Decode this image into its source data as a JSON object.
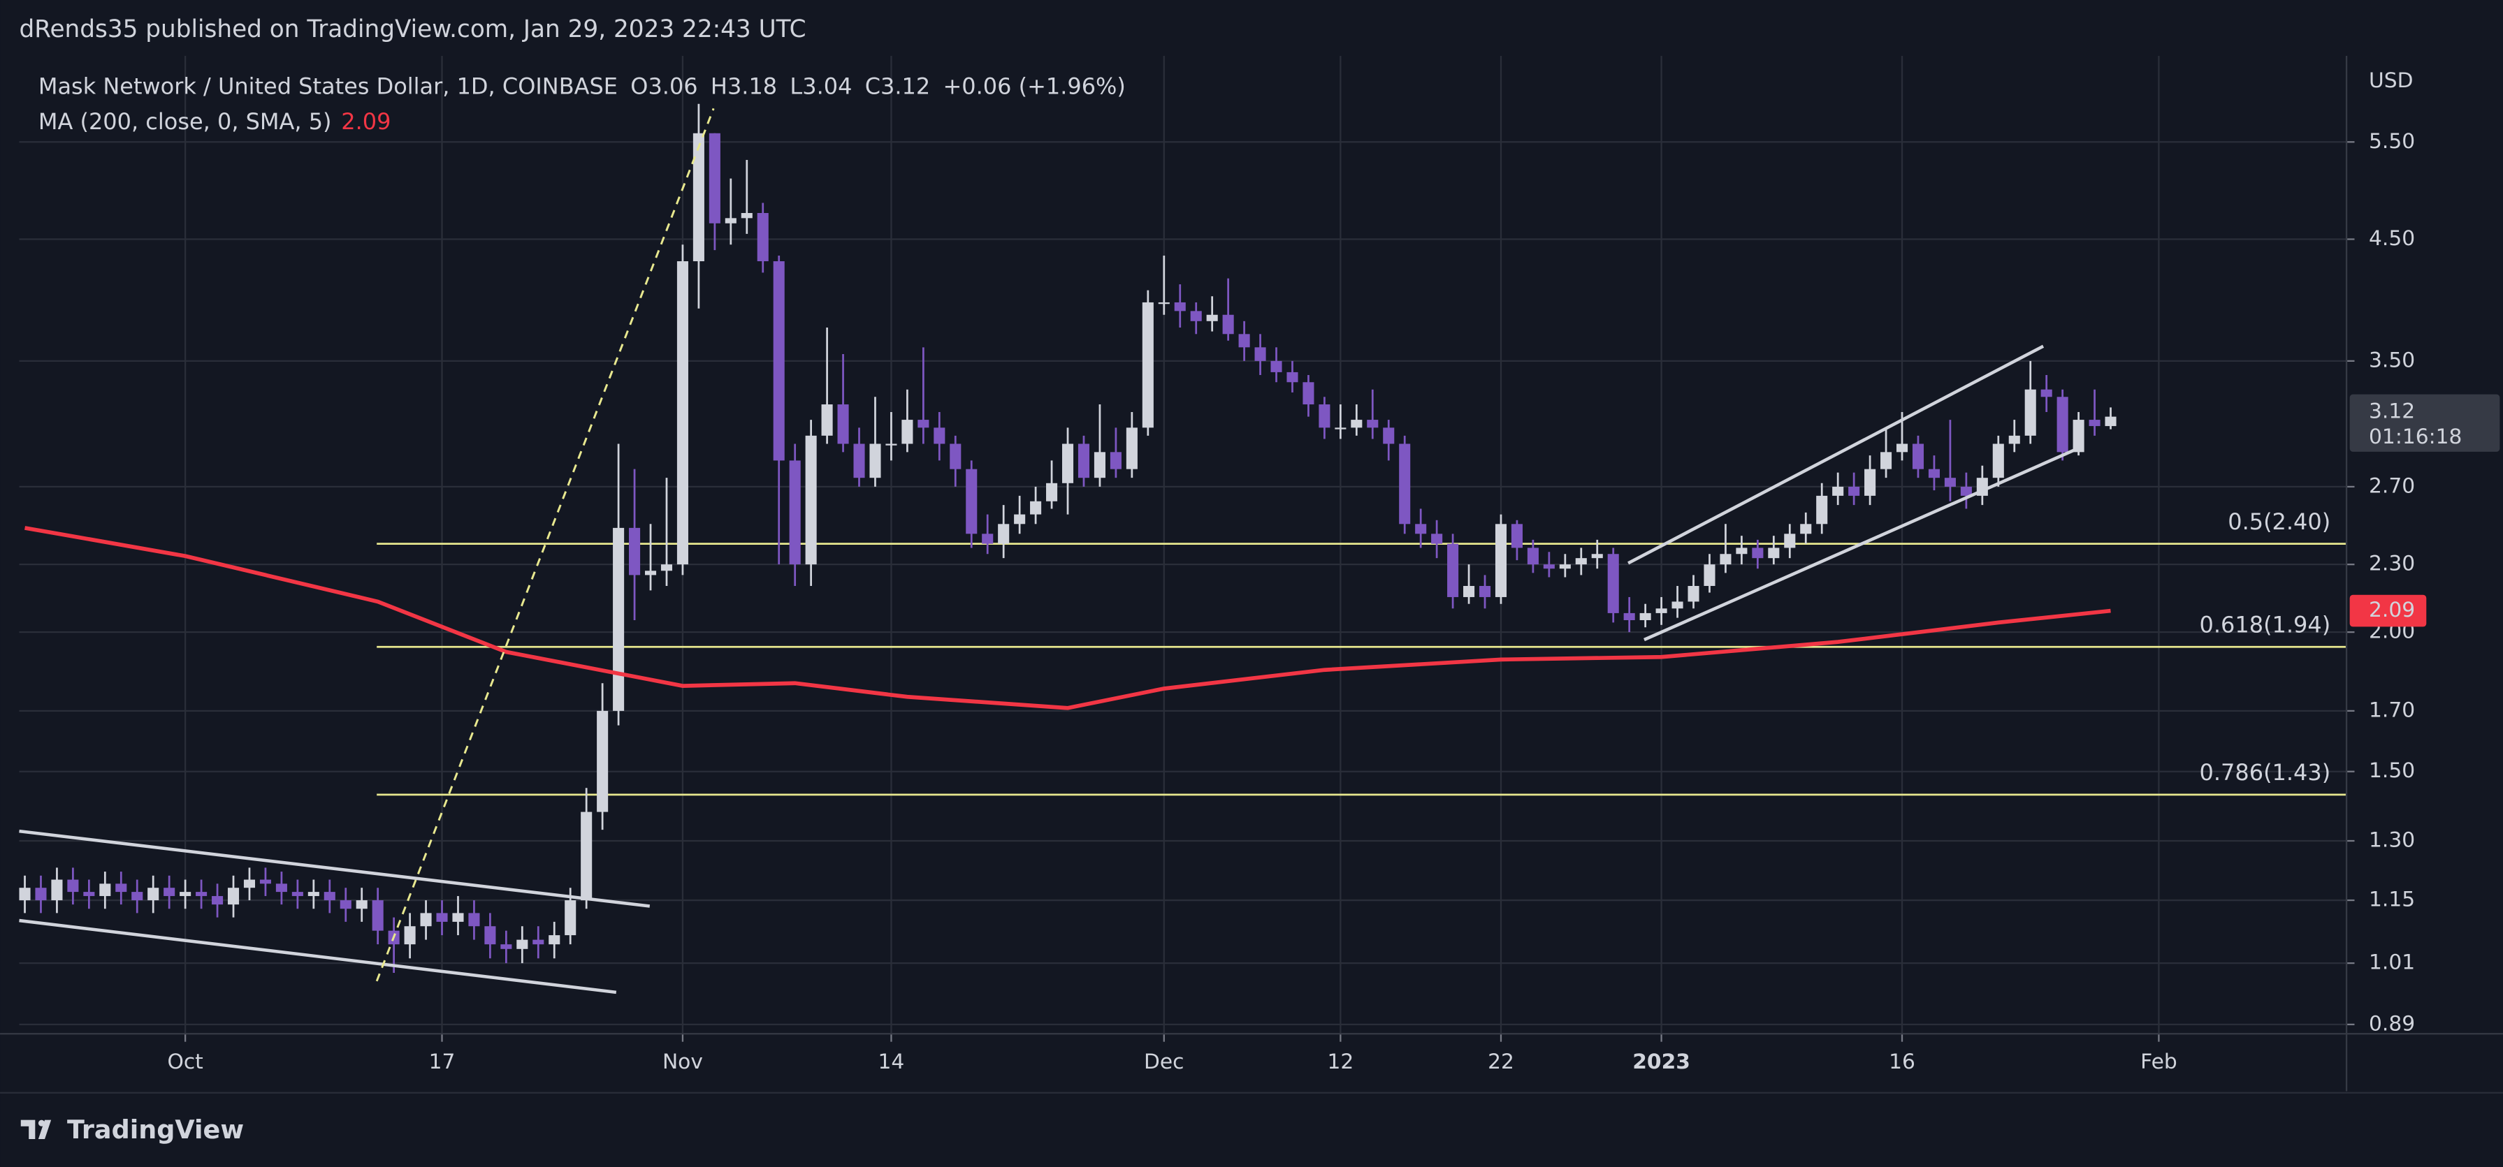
{
  "header": {
    "publisher": "dRends35 published on TradingView.com, Jan 29, 2023 22:43 UTC"
  },
  "chart_data": {
    "type": "candlestick",
    "title": "Mask Network / United States Dollar, 1D, COINBASE",
    "legend_values": [
      "O3.06",
      "H3.18",
      "L3.04",
      "C3.12",
      "+0.06 (+1.96%)"
    ],
    "currency": "USD",
    "countdown": "01:16:18",
    "up_color": "#d1d4dc",
    "down_color": "#7e57c2",
    "log_scale": true,
    "grid": true,
    "open": [
      1.15,
      1.18,
      1.15,
      1.2,
      1.17,
      1.16,
      1.19,
      1.17,
      1.15,
      1.18,
      1.16,
      1.17,
      1.16,
      1.14,
      1.18,
      1.2,
      1.19,
      1.17,
      1.16,
      1.17,
      1.15,
      1.13,
      1.15,
      1.08,
      1.05,
      1.09,
      1.12,
      1.1,
      1.12,
      1.09,
      1.05,
      1.04,
      1.06,
      1.05,
      1.07,
      1.15,
      1.38,
      1.7,
      2.48,
      2.25,
      2.27,
      2.3,
      4.3,
      5.6,
      4.65,
      4.7,
      4.75,
      4.3,
      2.85,
      2.3,
      3.0,
      3.2,
      2.95,
      2.75,
      2.95,
      2.95,
      3.1,
      3.05,
      2.95,
      2.8,
      2.45,
      2.4,
      2.5,
      2.55,
      2.62,
      2.72,
      2.95,
      2.75,
      2.9,
      2.8,
      3.05,
      3.95,
      3.95,
      3.88,
      3.8,
      3.85,
      3.7,
      3.6,
      3.5,
      3.42,
      3.35,
      3.2,
      3.05,
      3.05,
      3.1,
      3.05,
      2.95,
      2.5,
      2.45,
      2.4,
      2.15,
      2.2,
      2.15,
      2.5,
      2.38,
      2.3,
      2.28,
      2.3,
      2.33,
      2.35,
      2.08,
      2.05,
      2.08,
      2.1,
      2.13,
      2.2,
      2.3,
      2.35,
      2.38,
      2.33,
      2.38,
      2.45,
      2.5,
      2.65,
      2.7,
      2.65,
      2.8,
      2.9,
      2.95,
      2.8,
      2.75,
      2.7,
      2.65,
      2.75,
      2.95,
      3.0,
      3.3,
      3.25,
      2.9,
      3.1,
      3.06
    ],
    "high": [
      1.21,
      1.21,
      1.23,
      1.23,
      1.2,
      1.22,
      1.22,
      1.2,
      1.21,
      1.21,
      1.2,
      1.2,
      1.19,
      1.21,
      1.23,
      1.23,
      1.22,
      1.2,
      1.2,
      1.2,
      1.18,
      1.18,
      1.18,
      1.11,
      1.12,
      1.15,
      1.15,
      1.16,
      1.15,
      1.12,
      1.08,
      1.09,
      1.09,
      1.1,
      1.18,
      1.45,
      1.8,
      2.95,
      2.8,
      2.5,
      2.75,
      4.45,
      5.95,
      5.6,
      5.1,
      5.3,
      4.85,
      4.35,
      2.95,
      3.1,
      3.75,
      3.55,
      3.05,
      3.25,
      3.15,
      3.3,
      3.6,
      3.15,
      3.0,
      2.85,
      2.55,
      2.6,
      2.65,
      2.7,
      2.85,
      3.05,
      3.0,
      3.2,
      3.05,
      3.15,
      4.05,
      4.35,
      4.1,
      3.95,
      4.0,
      4.15,
      3.8,
      3.7,
      3.6,
      3.5,
      3.4,
      3.25,
      3.2,
      3.2,
      3.3,
      3.1,
      3.0,
      2.58,
      2.52,
      2.45,
      2.3,
      2.25,
      2.55,
      2.52,
      2.42,
      2.36,
      2.35,
      2.38,
      2.42,
      2.38,
      2.15,
      2.12,
      2.15,
      2.2,
      2.25,
      2.35,
      2.5,
      2.44,
      2.42,
      2.44,
      2.5,
      2.56,
      2.72,
      2.78,
      2.78,
      2.88,
      3.05,
      3.15,
      3.0,
      2.88,
      3.1,
      2.78,
      2.82,
      3.0,
      3.1,
      3.5,
      3.4,
      3.3,
      3.15,
      3.3,
      3.18
    ],
    "low": [
      1.12,
      1.12,
      1.12,
      1.14,
      1.13,
      1.13,
      1.14,
      1.12,
      1.12,
      1.13,
      1.13,
      1.13,
      1.11,
      1.11,
      1.15,
      1.16,
      1.14,
      1.13,
      1.13,
      1.12,
      1.1,
      1.1,
      1.05,
      0.99,
      1.02,
      1.06,
      1.07,
      1.07,
      1.06,
      1.02,
      1.01,
      1.01,
      1.02,
      1.02,
      1.05,
      1.13,
      1.33,
      1.65,
      2.05,
      2.18,
      2.2,
      2.25,
      3.9,
      4.4,
      4.45,
      4.55,
      4.2,
      2.3,
      2.2,
      2.2,
      2.95,
      2.9,
      2.7,
      2.7,
      2.85,
      2.9,
      2.95,
      2.85,
      2.7,
      2.38,
      2.35,
      2.33,
      2.45,
      2.5,
      2.58,
      2.55,
      2.7,
      2.7,
      2.75,
      2.75,
      3.0,
      3.85,
      3.75,
      3.7,
      3.72,
      3.65,
      3.5,
      3.4,
      3.35,
      3.28,
      3.12,
      2.98,
      2.98,
      3.0,
      2.98,
      2.85,
      2.45,
      2.38,
      2.33,
      2.1,
      2.12,
      2.1,
      2.12,
      2.32,
      2.26,
      2.24,
      2.24,
      2.25,
      2.28,
      2.04,
      2.0,
      2.02,
      2.03,
      2.06,
      2.1,
      2.17,
      2.26,
      2.3,
      2.28,
      2.3,
      2.33,
      2.4,
      2.45,
      2.6,
      2.6,
      2.6,
      2.75,
      2.85,
      2.75,
      2.68,
      2.62,
      2.58,
      2.6,
      2.7,
      2.9,
      2.95,
      3.15,
      2.85,
      2.88,
      3.0,
      3.04
    ],
    "close": [
      1.18,
      1.15,
      1.2,
      1.17,
      1.16,
      1.19,
      1.17,
      1.15,
      1.18,
      1.16,
      1.17,
      1.16,
      1.14,
      1.18,
      1.2,
      1.19,
      1.17,
      1.16,
      1.17,
      1.15,
      1.13,
      1.15,
      1.08,
      1.05,
      1.09,
      1.12,
      1.1,
      1.12,
      1.09,
      1.05,
      1.04,
      1.06,
      1.05,
      1.07,
      1.15,
      1.38,
      1.7,
      2.48,
      2.25,
      2.27,
      2.3,
      4.3,
      5.6,
      4.65,
      4.7,
      4.75,
      4.3,
      2.85,
      2.3,
      3.0,
      3.2,
      2.95,
      2.75,
      2.95,
      2.95,
      3.1,
      3.05,
      2.95,
      2.8,
      2.45,
      2.4,
      2.5,
      2.55,
      2.62,
      2.72,
      2.95,
      2.75,
      2.9,
      2.8,
      3.05,
      3.95,
      3.95,
      3.88,
      3.8,
      3.85,
      3.7,
      3.6,
      3.5,
      3.42,
      3.35,
      3.2,
      3.05,
      3.05,
      3.1,
      3.05,
      2.95,
      2.5,
      2.45,
      2.4,
      2.15,
      2.2,
      2.15,
      2.5,
      2.38,
      2.3,
      2.28,
      2.3,
      2.33,
      2.35,
      2.08,
      2.05,
      2.08,
      2.1,
      2.13,
      2.2,
      2.3,
      2.35,
      2.38,
      2.33,
      2.38,
      2.45,
      2.5,
      2.65,
      2.7,
      2.65,
      2.8,
      2.9,
      2.95,
      2.8,
      2.75,
      2.7,
      2.65,
      2.75,
      2.95,
      3.0,
      3.3,
      3.25,
      2.9,
      3.1,
      3.06,
      3.12
    ],
    "indicator": {
      "name": "MA (200, close, 0, SMA, 5)",
      "color": "#f23645",
      "x": [
        0,
        10,
        22,
        30,
        41,
        48,
        55,
        65,
        71,
        81,
        92,
        102,
        113,
        123,
        130
      ],
      "values": [
        2.48,
        2.34,
        2.13,
        1.92,
        1.79,
        1.8,
        1.75,
        1.71,
        1.78,
        1.85,
        1.89,
        1.9,
        1.96,
        2.04,
        2.09
      ]
    },
    "fib": [
      {
        "label": "0.5(2.40)",
        "value": 2.4
      },
      {
        "label": "0.618(1.94)",
        "value": 1.94
      },
      {
        "label": "0.786(1.43)",
        "value": 1.43
      }
    ],
    "fib_color": "#e8e88f",
    "xlim": [
      -0.35,
      144.7
    ],
    "xticks": [
      {
        "value": 10,
        "label": "Oct"
      },
      {
        "value": 26,
        "label": "17"
      },
      {
        "value": 41,
        "label": "Nov"
      },
      {
        "value": 54,
        "label": "14"
      },
      {
        "value": 71,
        "label": "Dec"
      },
      {
        "value": 82,
        "label": "12"
      },
      {
        "value": 92,
        "label": "22"
      },
      {
        "value": 102,
        "label": "2023"
      },
      {
        "value": 117,
        "label": "16"
      },
      {
        "value": 133,
        "label": "Feb"
      }
    ],
    "ylim": [
      0.873,
      6.57
    ],
    "yticks": [
      {
        "value": 5.5,
        "label": "5.50"
      },
      {
        "value": 4.5,
        "label": "4.50"
      },
      {
        "value": 3.5,
        "label": "3.50"
      },
      {
        "value": 2.7,
        "label": "2.70"
      },
      {
        "value": 2.3,
        "label": "2.30"
      },
      {
        "value": 2,
        "label": "2.00"
      },
      {
        "value": 1.7,
        "label": "1.70"
      },
      {
        "value": 1.5,
        "label": "1.50"
      },
      {
        "value": 1.3,
        "label": "1.30"
      },
      1.15,
      1.01,
      0.89
    ]
  },
  "footer": {
    "brand": "TradingView"
  }
}
